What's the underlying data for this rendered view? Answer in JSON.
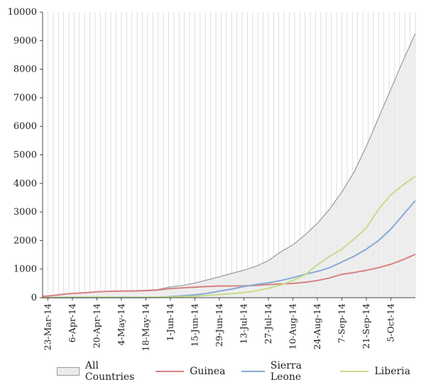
{
  "chart_data": {
    "type": "area",
    "title": "",
    "xlabel": "",
    "ylabel": "",
    "ylim": [
      0,
      10000
    ],
    "yticks": [
      0,
      1000,
      2000,
      3000,
      4000,
      5000,
      6000,
      7000,
      8000,
      9000,
      10000
    ],
    "x_tick_labels": [
      "23-Mar-14",
      "6-Apr-14",
      "20-Apr-14",
      "4-May-14",
      "18-May-14",
      "1-Jun-14",
      "15-Jun-14",
      "29-Jun-14",
      "13-Jul-14",
      "27-Jul-14",
      "10-Aug-14",
      "24-Aug-14",
      "7-Sep-14",
      "21-Sep-14",
      "5-Oct-14"
    ],
    "xlim": [
      "2014-03-20",
      "2014-10-19"
    ],
    "grid": "vertical",
    "legend_position": "bottom",
    "series": [
      {
        "name": "All Countries",
        "color": "#9a9a9a",
        "fill": "#ebebeb",
        "style": "area",
        "points": [
          [
            "2014-03-20",
            50
          ],
          [
            "2014-03-23",
            60
          ],
          [
            "2014-04-01",
            120
          ],
          [
            "2014-04-06",
            150
          ],
          [
            "2014-04-13",
            180
          ],
          [
            "2014-04-20",
            210
          ],
          [
            "2014-04-27",
            230
          ],
          [
            "2014-05-04",
            240
          ],
          [
            "2014-05-11",
            245
          ],
          [
            "2014-05-18",
            260
          ],
          [
            "2014-05-25",
            290
          ],
          [
            "2014-06-01",
            380
          ],
          [
            "2014-06-08",
            430
          ],
          [
            "2014-06-15",
            510
          ],
          [
            "2014-06-22",
            620
          ],
          [
            "2014-06-29",
            730
          ],
          [
            "2014-07-06",
            850
          ],
          [
            "2014-07-13",
            960
          ],
          [
            "2014-07-20",
            1100
          ],
          [
            "2014-07-27",
            1300
          ],
          [
            "2014-08-03",
            1600
          ],
          [
            "2014-08-10",
            1850
          ],
          [
            "2014-08-17",
            2200
          ],
          [
            "2014-08-24",
            2600
          ],
          [
            "2014-08-31",
            3100
          ],
          [
            "2014-09-07",
            3700
          ],
          [
            "2014-09-14",
            4400
          ],
          [
            "2014-09-21",
            5300
          ],
          [
            "2014-09-28",
            6300
          ],
          [
            "2014-10-05",
            7300
          ],
          [
            "2014-10-12",
            8300
          ],
          [
            "2014-10-19",
            9250
          ]
        ]
      },
      {
        "name": "Guinea",
        "color": "#d98080",
        "style": "line",
        "points": [
          [
            "2014-03-20",
            50
          ],
          [
            "2014-03-23",
            60
          ],
          [
            "2014-04-01",
            120
          ],
          [
            "2014-04-06",
            150
          ],
          [
            "2014-04-13",
            170
          ],
          [
            "2014-04-20",
            205
          ],
          [
            "2014-04-27",
            222
          ],
          [
            "2014-05-04",
            230
          ],
          [
            "2014-05-11",
            235
          ],
          [
            "2014-05-18",
            245
          ],
          [
            "2014-05-25",
            270
          ],
          [
            "2014-06-01",
            320
          ],
          [
            "2014-06-08",
            345
          ],
          [
            "2014-06-15",
            370
          ],
          [
            "2014-06-22",
            390
          ],
          [
            "2014-06-29",
            410
          ],
          [
            "2014-07-06",
            410
          ],
          [
            "2014-07-13",
            415
          ],
          [
            "2014-07-20",
            430
          ],
          [
            "2014-07-27",
            460
          ],
          [
            "2014-08-03",
            480
          ],
          [
            "2014-08-10",
            500
          ],
          [
            "2014-08-17",
            540
          ],
          [
            "2014-08-24",
            600
          ],
          [
            "2014-08-31",
            690
          ],
          [
            "2014-09-07",
            820
          ],
          [
            "2014-09-14",
            880
          ],
          [
            "2014-09-21",
            960
          ],
          [
            "2014-09-28",
            1050
          ],
          [
            "2014-10-05",
            1170
          ],
          [
            "2014-10-12",
            1330
          ],
          [
            "2014-10-19",
            1520
          ]
        ]
      },
      {
        "name": "Sierra Leone",
        "color": "#86a9d6",
        "style": "line",
        "points": [
          [
            "2014-03-20",
            0
          ],
          [
            "2014-05-18",
            5
          ],
          [
            "2014-05-25",
            10
          ],
          [
            "2014-06-01",
            40
          ],
          [
            "2014-06-08",
            70
          ],
          [
            "2014-06-15",
            100
          ],
          [
            "2014-06-22",
            150
          ],
          [
            "2014-06-29",
            230
          ],
          [
            "2014-07-06",
            300
          ],
          [
            "2014-07-13",
            390
          ],
          [
            "2014-07-20",
            460
          ],
          [
            "2014-07-27",
            520
          ],
          [
            "2014-08-03",
            600
          ],
          [
            "2014-08-10",
            700
          ],
          [
            "2014-08-17",
            820
          ],
          [
            "2014-08-24",
            920
          ],
          [
            "2014-08-31",
            1050
          ],
          [
            "2014-09-07",
            1250
          ],
          [
            "2014-09-14",
            1450
          ],
          [
            "2014-09-21",
            1700
          ],
          [
            "2014-09-28",
            2000
          ],
          [
            "2014-10-05",
            2400
          ],
          [
            "2014-10-12",
            2900
          ],
          [
            "2014-10-19",
            3400
          ]
        ]
      },
      {
        "name": "Liberia",
        "color": "#c4dc8a",
        "style": "line",
        "points": [
          [
            "2014-03-20",
            0
          ],
          [
            "2014-03-23",
            5
          ],
          [
            "2014-04-06",
            15
          ],
          [
            "2014-04-20",
            20
          ],
          [
            "2014-05-04",
            15
          ],
          [
            "2014-05-18",
            15
          ],
          [
            "2014-06-01",
            25
          ],
          [
            "2014-06-08",
            40
          ],
          [
            "2014-06-15",
            50
          ],
          [
            "2014-06-22",
            80
          ],
          [
            "2014-06-29",
            110
          ],
          [
            "2014-07-06",
            140
          ],
          [
            "2014-07-13",
            180
          ],
          [
            "2014-07-20",
            240
          ],
          [
            "2014-07-27",
            330
          ],
          [
            "2014-08-03",
            440
          ],
          [
            "2014-08-10",
            600
          ],
          [
            "2014-08-17",
            800
          ],
          [
            "2014-08-24",
            1150
          ],
          [
            "2014-08-31",
            1450
          ],
          [
            "2014-09-07",
            1700
          ],
          [
            "2014-09-14",
            2050
          ],
          [
            "2014-09-21",
            2450
          ],
          [
            "2014-09-28",
            3100
          ],
          [
            "2014-10-05",
            3600
          ],
          [
            "2014-10-12",
            3950
          ],
          [
            "2014-10-19",
            4250
          ]
        ]
      }
    ]
  }
}
